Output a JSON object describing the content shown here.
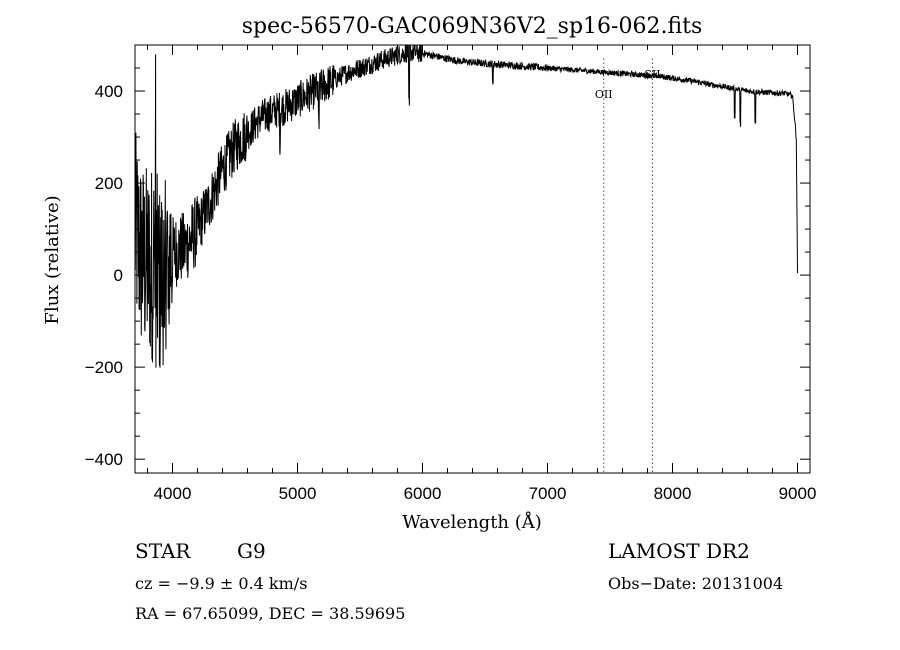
{
  "chart_data": {
    "type": "line",
    "title": "spec-56570-GAC069N36V2_sp16-062.fits",
    "xlabel": "Wavelength (Å)",
    "ylabel": "Flux (relative)",
    "xlim": [
      3700,
      9100
    ],
    "ylim": [
      -430,
      500
    ],
    "x_ticks": [
      4000,
      5000,
      6000,
      7000,
      8000,
      9000
    ],
    "x_tick_labels": [
      "4000",
      "5000",
      "6000",
      "7000",
      "8000",
      "9000"
    ],
    "y_ticks": [
      -400,
      -200,
      0,
      200,
      400
    ],
    "y_tick_labels": [
      "−400",
      "−200",
      "0",
      "200",
      "400"
    ],
    "grid": false,
    "line_color": "#000000",
    "series": [
      {
        "x": [
          3700,
          3750,
          3800,
          3850,
          3900,
          3950,
          4000,
          4100,
          4200,
          4300,
          4400,
          4500,
          4600,
          4700,
          4800,
          4900,
          5000,
          5100,
          5200,
          5300,
          5400,
          5500,
          5600,
          5700,
          5800,
          5900,
          6000,
          6100,
          6200,
          6300,
          6400,
          6500,
          6600,
          6700,
          6800,
          6900,
          7000,
          7100,
          7200,
          7300,
          7400,
          7500,
          7600,
          7700,
          7800,
          7900,
          8000,
          8100,
          8200,
          8300,
          8400,
          8500,
          8600,
          8700,
          8800,
          8900,
          8960,
          8990,
          9000
        ],
        "y": [
          100,
          40,
          20,
          30,
          -20,
          60,
          50,
          60,
          100,
          160,
          230,
          280,
          310,
          340,
          355,
          365,
          380,
          395,
          410,
          425,
          440,
          450,
          460,
          470,
          478,
          485,
          482,
          476,
          470,
          465,
          462,
          460,
          458,
          456,
          454,
          452,
          450,
          448,
          446,
          444,
          442,
          440,
          438,
          436,
          434,
          432,
          428,
          424,
          420,
          414,
          410,
          405,
          400,
          398,
          396,
          395,
          390,
          300,
          5
        ]
      }
    ],
    "lines": [
      {
        "label": "OII",
        "x": 7450,
        "style": "dotted"
      },
      {
        "label": "SII",
        "x": 7840,
        "style": "dotted"
      }
    ]
  },
  "info": {
    "object_class": "STAR",
    "subclass": "G9",
    "survey": "LAMOST DR2",
    "cz": "cz = −9.9 ± 0.4 km/s",
    "obs_date": "Obs−Date: 20131004",
    "coords": "RA =  67.65099, DEC =  38.59695"
  }
}
